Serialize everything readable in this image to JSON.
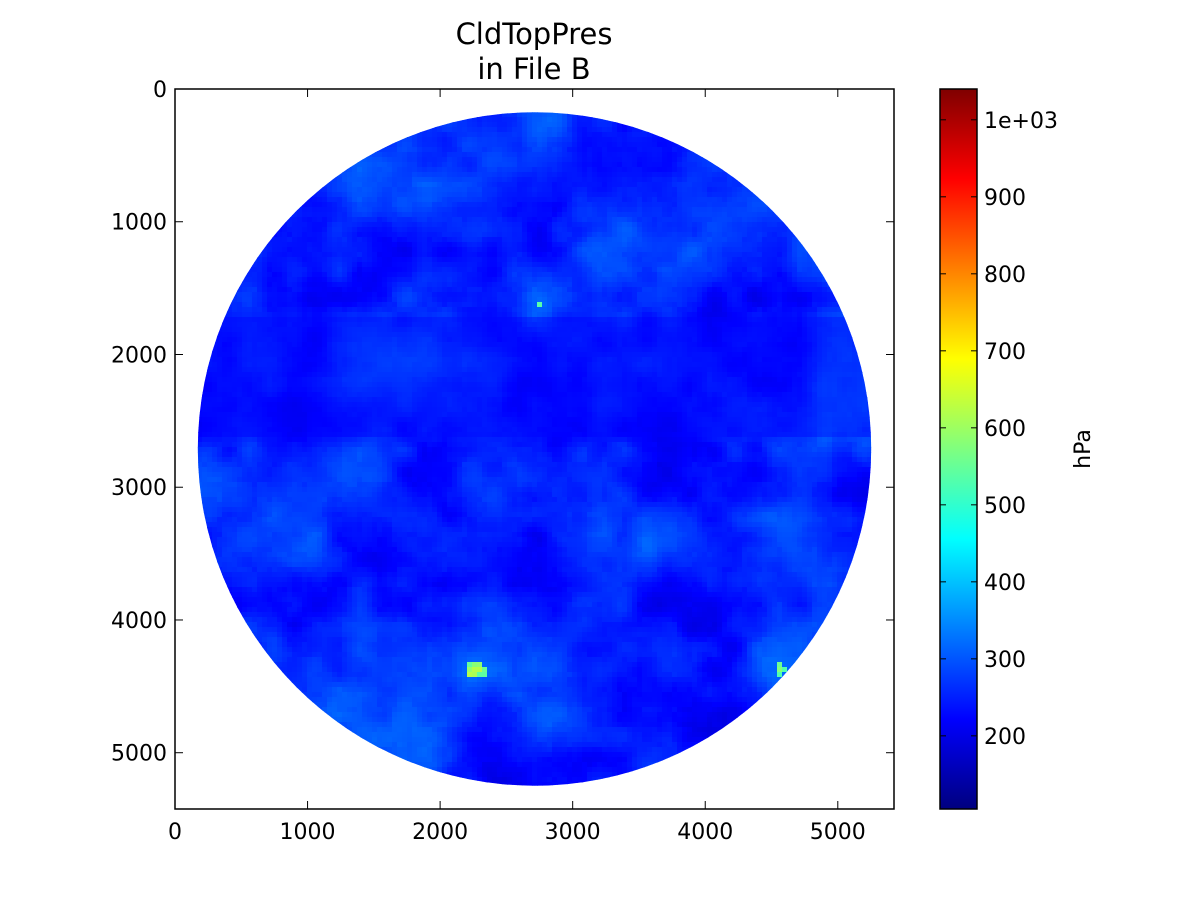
{
  "chart_data": {
    "type": "heatmap",
    "title": [
      "CldTopPres",
      "in File B"
    ],
    "xlabel": "",
    "ylabel": "",
    "xlim": [
      0,
      5424
    ],
    "ylim": [
      5424,
      0
    ],
    "x_ticks": [
      0,
      1000,
      2000,
      3000,
      4000,
      5000
    ],
    "y_ticks": [
      0,
      1000,
      2000,
      3000,
      4000,
      5000
    ],
    "x_tick_labels": [
      "0",
      "1000",
      "2000",
      "3000",
      "4000",
      "5000"
    ],
    "y_tick_labels": [
      "0",
      "1000",
      "2000",
      "3000",
      "4000",
      "5000"
    ],
    "disk": {
      "center_x": 2712,
      "center_y": 2712,
      "radius": 2540
    },
    "colorbar": {
      "label": "hPa",
      "range": [
        105,
        1040
      ],
      "ticks": [
        200,
        300,
        400,
        500,
        600,
        700,
        800,
        900,
        1000
      ],
      "tick_labels": [
        "200",
        "300",
        "400",
        "500",
        "600",
        "700",
        "800",
        "900",
        "1e+03"
      ],
      "colormap": "jet",
      "colormap_stops": [
        "#00007f",
        "#0000ff",
        "#007fff",
        "#00ffff",
        "#7fff7f",
        "#ffff00",
        "#ff7f00",
        "#ff0000",
        "#7f0000"
      ]
    },
    "grid": false,
    "legend": "none"
  }
}
